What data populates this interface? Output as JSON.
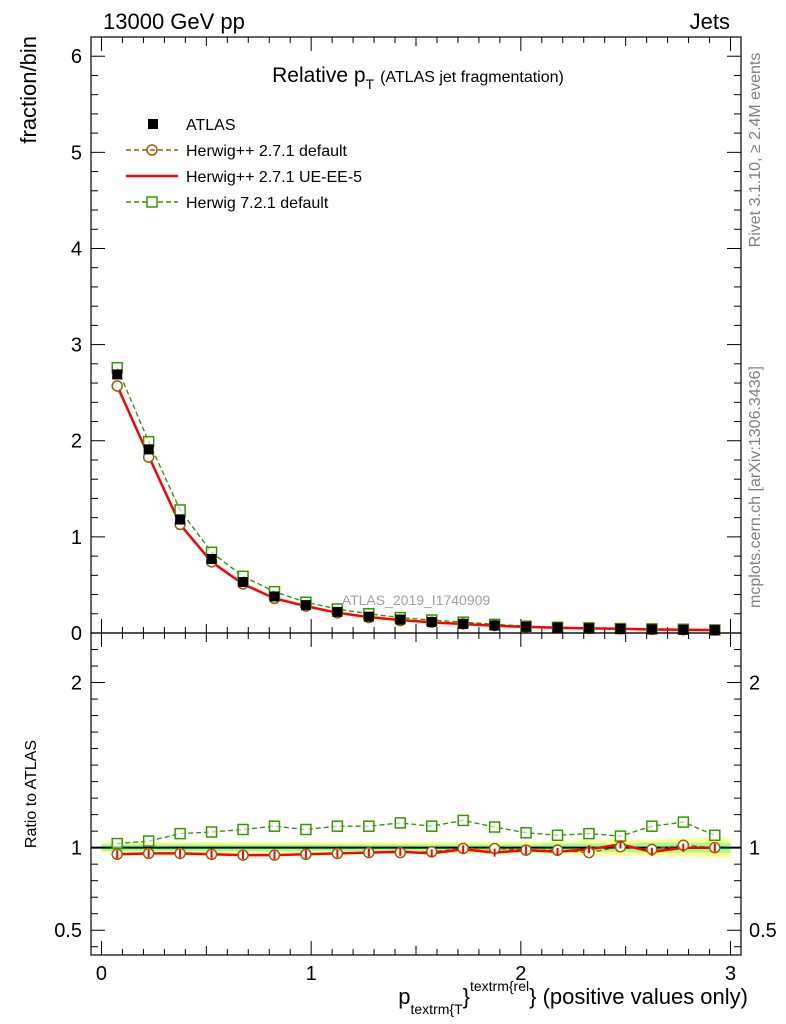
{
  "header": {
    "left": "13000 GeV pp",
    "right": "Jets"
  },
  "side_labels": {
    "top": "Rivet 3.1.10, ≥ 2.4M events",
    "bottom": "mcplots.cern.ch [arXiv:1306.3436]"
  },
  "analysis_label": "ATLAS_2019_I1740909",
  "colors": {
    "data": "#000000",
    "herwig_default": "#a05a00",
    "ue_ee5": "#ff0000",
    "herwig7": "#339900",
    "band_outer": "#ffff99",
    "band_inner": "#99ff99"
  },
  "chart_data": [
    {
      "type": "line",
      "title": "Relative p",
      "title_sub": "T",
      "title_rest": "(ATLAS jet fragmentation)",
      "ylabel": "fraction/bin",
      "xlim": [
        -0.05,
        3.05
      ],
      "ylim": [
        0,
        6.2
      ],
      "x_ticks": [
        "0",
        "1",
        "2",
        "3"
      ],
      "y_ticks": [
        "0",
        "1",
        "2",
        "3",
        "4",
        "5",
        "6"
      ],
      "legend_position": "top-left",
      "x": [
        0.075,
        0.225,
        0.375,
        0.525,
        0.675,
        0.825,
        0.975,
        1.125,
        1.275,
        1.425,
        1.575,
        1.725,
        1.875,
        2.025,
        2.175,
        2.325,
        2.475,
        2.625,
        2.775,
        2.925
      ],
      "series": [
        {
          "name": "ATLAS",
          "values": [
            2.69,
            1.91,
            1.18,
            0.77,
            0.53,
            0.38,
            0.29,
            0.22,
            0.17,
            0.14,
            0.115,
            0.095,
            0.078,
            0.065,
            0.056,
            0.049,
            0.043,
            0.038,
            0.034,
            0.03
          ]
        },
        {
          "name": "Herwig++ 2.7.1 default",
          "values": [
            2.57,
            1.83,
            1.13,
            0.74,
            0.51,
            0.36,
            0.28,
            0.21,
            0.16,
            0.13,
            0.112,
            0.095,
            0.078,
            0.064,
            0.055,
            0.047,
            0.043,
            0.037,
            0.034,
            0.03
          ]
        },
        {
          "name": "Herwig++ 2.7.1 UE-EE-5",
          "values": [
            2.57,
            1.84,
            1.13,
            0.74,
            0.51,
            0.36,
            0.28,
            0.21,
            0.165,
            0.135,
            0.11,
            0.094,
            0.075,
            0.063,
            0.054,
            0.048,
            0.044,
            0.036,
            0.034,
            0.03
          ]
        },
        {
          "name": "Herwig 7.2.1 default",
          "values": [
            2.76,
            1.99,
            1.28,
            0.84,
            0.59,
            0.43,
            0.32,
            0.25,
            0.2,
            0.16,
            0.135,
            0.113,
            0.09,
            0.071,
            0.06,
            0.053,
            0.046,
            0.043,
            0.039,
            0.032
          ]
        }
      ]
    },
    {
      "type": "line",
      "ylabel": "Ratio to ATLAS",
      "xlabel_main": "p",
      "xlabel_sub": "textrm{T",
      "xlabel_sup": "textrm{rel",
      "xlabel_close": "}",
      "xlabel_rest": "} (positive values only)",
      "xlim": [
        -0.05,
        3.05
      ],
      "ylim": [
        0.35,
        2.3
      ],
      "x_ticks": [
        "0",
        "1",
        "2",
        "3"
      ],
      "y_ticks": [
        "0.5",
        "1",
        "2"
      ],
      "x": [
        0.075,
        0.225,
        0.375,
        0.525,
        0.675,
        0.825,
        0.975,
        1.125,
        1.275,
        1.425,
        1.575,
        1.725,
        1.875,
        2.025,
        2.175,
        2.325,
        2.475,
        2.625,
        2.775,
        2.925
      ],
      "band_inner": [
        0.02,
        0.02,
        0.02,
        0.02,
        0.02,
        0.02,
        0.02,
        0.02,
        0.02,
        0.02,
        0.02,
        0.02,
        0.02,
        0.02,
        0.025,
        0.025,
        0.025,
        0.03,
        0.03,
        0.03
      ],
      "band_outer": [
        0.035,
        0.035,
        0.035,
        0.035,
        0.035,
        0.035,
        0.035,
        0.035,
        0.035,
        0.035,
        0.035,
        0.035,
        0.035,
        0.035,
        0.04,
        0.045,
        0.05,
        0.05,
        0.055,
        0.06
      ],
      "series": [
        {
          "name": "Herwig++ 2.7.1 default",
          "values": [
            0.96,
            0.965,
            0.965,
            0.96,
            0.955,
            0.955,
            0.96,
            0.965,
            0.97,
            0.97,
            0.975,
            0.995,
            0.995,
            0.985,
            0.985,
            0.97,
            1.005,
            0.99,
            1.015,
            1.0
          ]
        },
        {
          "name": "Herwig++ 2.7.1 UE-EE-5",
          "values": [
            0.96,
            0.965,
            0.965,
            0.96,
            0.955,
            0.955,
            0.96,
            0.965,
            0.97,
            0.975,
            0.965,
            0.99,
            0.97,
            0.985,
            0.975,
            0.99,
            1.02,
            0.975,
            1.0,
            1.0
          ]
        },
        {
          "name": "Herwig 7.2.1 default",
          "values": [
            1.025,
            1.04,
            1.085,
            1.095,
            1.11,
            1.13,
            1.11,
            1.13,
            1.13,
            1.15,
            1.13,
            1.165,
            1.125,
            1.09,
            1.075,
            1.085,
            1.07,
            1.13,
            1.155,
            1.075
          ]
        }
      ]
    }
  ]
}
